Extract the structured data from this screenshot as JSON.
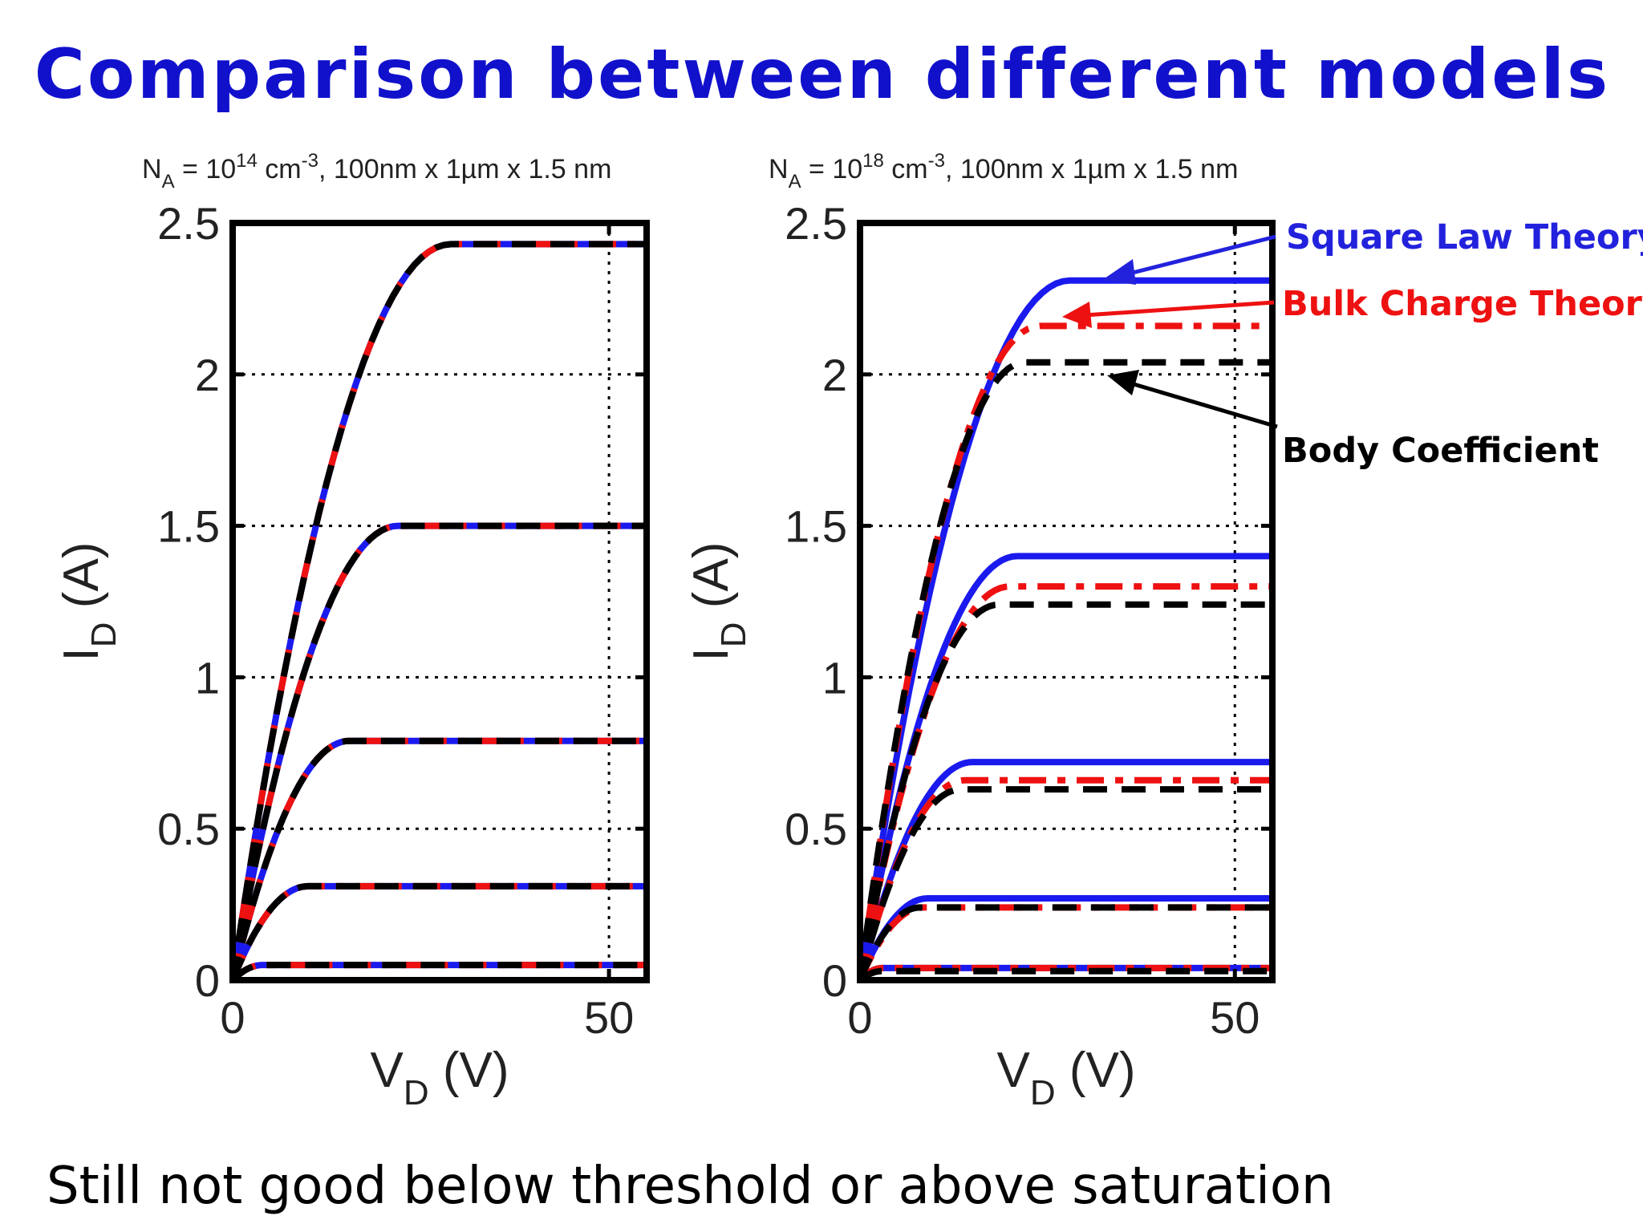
{
  "slide": {
    "title": "Comparison between different models",
    "footer": "Still not good below threshold or above saturation",
    "annotations": [
      {
        "text": "Square Law Theory",
        "color": "#2222dd"
      },
      {
        "text": "Bulk Charge Theory",
        "color": "#ee1111"
      },
      {
        "text": "Body Coefficient",
        "color": "#000000"
      }
    ]
  },
  "colors": {
    "title": "#1111cc",
    "square_law": "#1a1aee",
    "bulk_charge": "#ee1111",
    "body_coefficient": "#000000"
  },
  "chart_data": [
    {
      "type": "line",
      "title": {
        "base1": "N",
        "sub1": "A",
        "base2": " = 10",
        "sup": "14",
        "base3": " cm",
        "sup2": "-3",
        "base4": ", 100nm x 1µm x 1.5 nm"
      },
      "xlabel": {
        "base": "V",
        "sub": "D",
        "rest": " (V)"
      },
      "ylabel": {
        "base": "I",
        "sub": "D",
        "rest": " (A)"
      },
      "xlim": [
        0,
        55
      ],
      "ylim": [
        0,
        2.5
      ],
      "xticks": [
        0,
        50
      ],
      "yticks": [
        0,
        0.5,
        1,
        1.5,
        2,
        2.5
      ],
      "xtick_labels": [
        "0",
        "50"
      ],
      "ytick_labels": [
        "0",
        "0.5",
        "1",
        "1.5",
        "2",
        "2.5"
      ],
      "grid": true,
      "series": [
        {
          "name": "Square Law Theory",
          "style": "solid",
          "curves": [
            {
              "vsat": 4,
              "isat": 0.05
            },
            {
              "vsat": 10,
              "isat": 0.31
            },
            {
              "vsat": 15.5,
              "isat": 0.79
            },
            {
              "vsat": 22,
              "isat": 1.5
            },
            {
              "vsat": 29,
              "isat": 2.43
            }
          ]
        },
        {
          "name": "Bulk Charge Theory",
          "style": "dashdot",
          "curves": [
            {
              "vsat": 4,
              "isat": 0.05
            },
            {
              "vsat": 10,
              "isat": 0.31
            },
            {
              "vsat": 15.5,
              "isat": 0.79
            },
            {
              "vsat": 22,
              "isat": 1.5
            },
            {
              "vsat": 29,
              "isat": 2.43
            }
          ]
        },
        {
          "name": "Body Coefficient",
          "style": "dashed",
          "curves": [
            {
              "vsat": 4,
              "isat": 0.05
            },
            {
              "vsat": 10,
              "isat": 0.31
            },
            {
              "vsat": 15.5,
              "isat": 0.79
            },
            {
              "vsat": 22,
              "isat": 1.5
            },
            {
              "vsat": 29,
              "isat": 2.43
            }
          ]
        }
      ]
    },
    {
      "type": "line",
      "title": {
        "base1": "N",
        "sub1": "A",
        "base2": " = 10",
        "sup": "18",
        "base3": " cm",
        "sup2": "-3",
        "base4": ", 100nm x 1µm x 1.5 nm"
      },
      "xlabel": {
        "base": "V",
        "sub": "D",
        "rest": " (V)"
      },
      "ylabel": {
        "base": "I",
        "sub": "D",
        "rest": " (A)"
      },
      "xlim": [
        0,
        55
      ],
      "ylim": [
        0,
        2.5
      ],
      "xticks": [
        0,
        50
      ],
      "yticks": [
        0,
        0.5,
        1,
        1.5,
        2,
        2.5
      ],
      "xtick_labels": [
        "0",
        "50"
      ],
      "ytick_labels": [
        "0",
        "0.5",
        "1",
        "1.5",
        "2",
        "2.5"
      ],
      "grid": true,
      "series": [
        {
          "name": "Square Law Theory",
          "style": "solid",
          "curves": [
            {
              "vsat": 3,
              "isat": 0.04
            },
            {
              "vsat": 9,
              "isat": 0.27
            },
            {
              "vsat": 15,
              "isat": 0.72
            },
            {
              "vsat": 21,
              "isat": 1.4
            },
            {
              "vsat": 28,
              "isat": 2.31
            }
          ]
        },
        {
          "name": "Bulk Charge Theory",
          "style": "dashdot",
          "curves": [
            {
              "vsat": 3,
              "isat": 0.04
            },
            {
              "vsat": 8.5,
              "isat": 0.24
            },
            {
              "vsat": 14,
              "isat": 0.66
            },
            {
              "vsat": 20,
              "isat": 1.3
            },
            {
              "vsat": 24,
              "isat": 2.16
            }
          ]
        },
        {
          "name": "Body Coefficient",
          "style": "dashed",
          "curves": [
            {
              "vsat": 3,
              "isat": 0.03
            },
            {
              "vsat": 8,
              "isat": 0.24
            },
            {
              "vsat": 13.5,
              "isat": 0.63
            },
            {
              "vsat": 18.5,
              "isat": 1.24
            },
            {
              "vsat": 22,
              "isat": 2.04
            }
          ]
        }
      ]
    }
  ]
}
